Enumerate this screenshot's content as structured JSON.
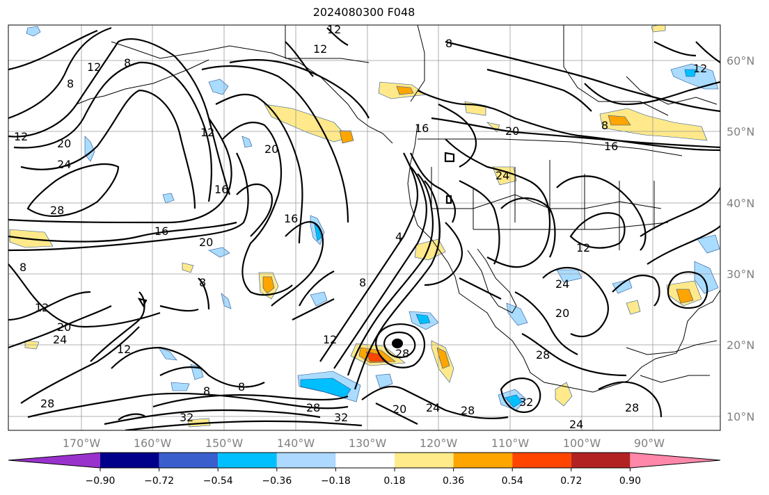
{
  "title": "2024080300 F048",
  "lon_labels": [
    "170°W",
    "160°W",
    "150°W",
    "140°W",
    "130°W",
    "120°W",
    "110°W",
    "100°W",
    "90°W"
  ],
  "lat_labels": [
    "60°N",
    "50°N",
    "40°N",
    "30°N",
    "20°N",
    "10°N"
  ],
  "contour_labels": [
    "12",
    "12",
    "8",
    "8",
    "16",
    "8",
    "12",
    "20",
    "24",
    "28",
    "12",
    "12",
    "20",
    "16",
    "16",
    "20",
    "4",
    "8",
    "16",
    "20",
    "24",
    "12",
    "16",
    "8",
    "24",
    "20",
    "12",
    "20",
    "24",
    "28",
    "28",
    "12",
    "28",
    "28",
    "32",
    "20",
    "24",
    "28",
    "32",
    "24",
    "8",
    "8",
    "8",
    "12",
    "28",
    "32",
    "8",
    "12"
  ],
  "colorbar": {
    "ticks": [
      "−0.90",
      "−0.72",
      "−0.54",
      "−0.36",
      "−0.18",
      "0.18",
      "0.36",
      "0.54",
      "0.72",
      "0.90"
    ],
    "colors": {
      "under": "#9932cc",
      "c1": "#00008b",
      "c2": "#3a5fcd",
      "c3": "#00bfff",
      "c4": "#add8ff",
      "c5": "#ffffff",
      "c6": "#ffeb8a",
      "c7": "#ffa500",
      "c8": "#ff4500",
      "c9": "#b22222",
      "over": "#ff88aa"
    }
  },
  "shading_colors": {
    "neg_light": "#aadcff",
    "neg_mid": "#00bfff",
    "pos_light": "#ffe98a",
    "pos_mid": "#ffa500",
    "pos_strong": "#ff4500"
  }
}
